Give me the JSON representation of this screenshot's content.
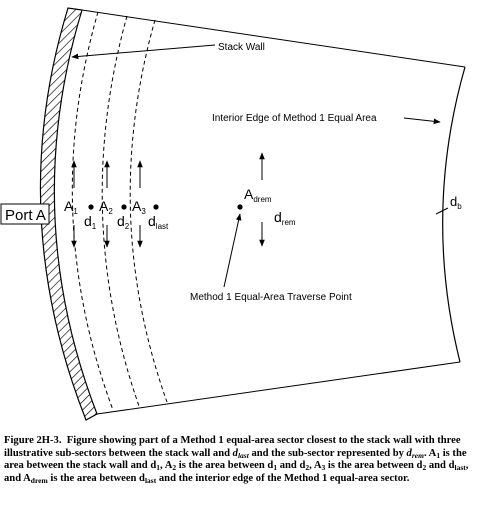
{
  "labels": {
    "stack_wall": "Stack Wall",
    "interior_edge": "Interior Edge of Method 1 Equal Area",
    "traverse_point": "Method 1 Equal-Area Traverse Point",
    "port": "Port A",
    "db": {
      "base": "d",
      "sub": "b"
    },
    "areas": [
      {
        "base": "A",
        "sub": "1"
      },
      {
        "base": "A",
        "sub": "2"
      },
      {
        "base": "A",
        "sub": "3"
      },
      {
        "base": "A",
        "sub": "drem"
      }
    ],
    "distances": [
      {
        "base": "d",
        "sub": "1"
      },
      {
        "base": "d",
        "sub": "2"
      },
      {
        "base": "d",
        "sub": "last"
      },
      {
        "base": "d",
        "sub": "rem"
      }
    ]
  },
  "caption": {
    "figure_label": "Figure 2H-3.",
    "text1": "Figure showing part of a Method 1 equal-area sector closest to the stack wall with three illustrative sub-sectors between the stack wall and",
    "d_last": "d",
    "d_last_sub": "last",
    "text2": "and the sub-sector represented by",
    "d_rem": "d",
    "d_rem_sub": "rem",
    "text3": ". A",
    "a1_sub": "1",
    "text4": "is the area between the stack wall and d",
    "d1_sub": "1",
    "text5": ", A",
    "a2_sub": "2",
    "text6": "is the area between d",
    "d1b_sub": "1",
    "text7": "and d",
    "d2_sub": "2",
    "text8": ", A",
    "a3_sub": "3",
    "text9": "is the area between d",
    "d2b_sub": "2",
    "text10": "and d",
    "dlast_sub": "last",
    "text11": ", and A",
    "adrem_sub": "drem",
    "text12": "is the area between d",
    "dlast2_sub": "last",
    "text13": "and the interior edge of the Method 1 equal-area sector."
  }
}
